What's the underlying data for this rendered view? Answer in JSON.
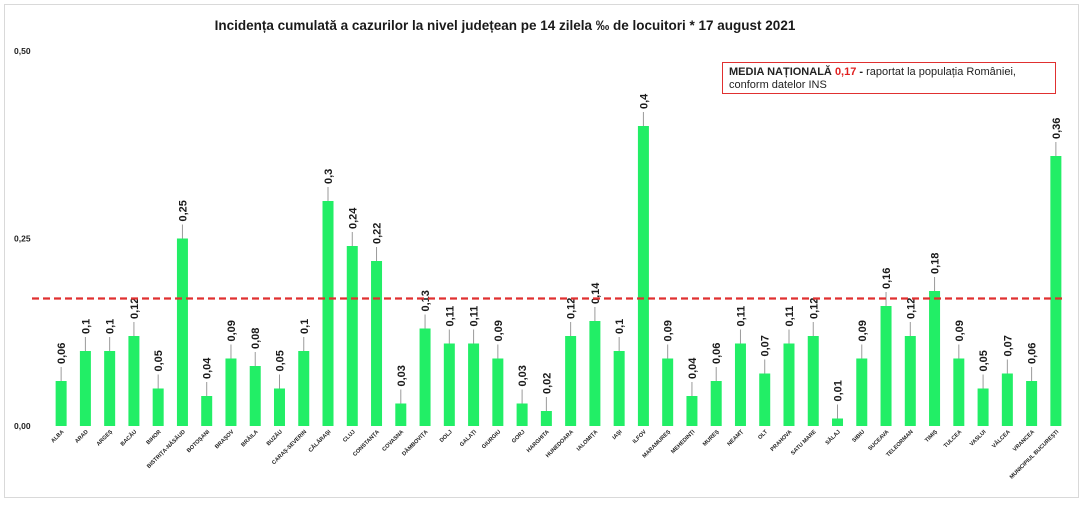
{
  "chart_data": {
    "type": "bar",
    "title": "Incidența cumulată a cazurilor la nivel județean pe 14 zilela ‰ de locuitori *  17 august 2021",
    "categories": [
      "ALBA",
      "ARAD",
      "ARGEȘ",
      "BACĂU",
      "BIHOR",
      "BISTRIȚA-NĂSĂUD",
      "BOTOȘANI",
      "BRAȘOV",
      "BRĂILA",
      "BUZĂU",
      "CARAȘ-SEVERIN",
      "CĂLĂRAȘI",
      "CLUJ",
      "CONSTANȚA",
      "COVASNA",
      "DÂMBOVIȚA",
      "DOLJ",
      "GALAȚI",
      "GIURGIU",
      "GORJ",
      "HARGHITA",
      "HUNEDOARA",
      "IALOMIȚA",
      "IAȘI",
      "ILFOV",
      "MARAMUREȘ",
      "MEHEDINȚI",
      "MUREȘ",
      "NEAMȚ",
      "OLT",
      "PRAHOVA",
      "SATU MARE",
      "SĂLAJ",
      "SIBIU",
      "SUCEAVA",
      "TELEORMAN",
      "TIMIȘ",
      "TULCEA",
      "VASLUI",
      "VÂLCEA",
      "VRANCEA",
      "MUNICIPIUL BUCUREȘTI"
    ],
    "values": [
      0.06,
      0.1,
      0.1,
      0.12,
      0.05,
      0.25,
      0.04,
      0.09,
      0.08,
      0.05,
      0.1,
      0.3,
      0.24,
      0.22,
      0.03,
      0.13,
      0.11,
      0.11,
      0.09,
      0.03,
      0.02,
      0.12,
      0.14,
      0.1,
      0.4,
      0.09,
      0.04,
      0.06,
      0.11,
      0.07,
      0.11,
      0.12,
      0.01,
      0.09,
      0.16,
      0.12,
      0.18,
      0.09,
      0.05,
      0.07,
      0.06,
      0.36
    ],
    "value_labels": [
      "0,06",
      "0,1",
      "0,1",
      "0,12",
      "0,05",
      "0,25",
      "0,04",
      "0,09",
      "0,08",
      "0,05",
      "0,1",
      "0,3",
      "0,24",
      "0,22",
      "0,03",
      "0,13",
      "0,11",
      "0,11",
      "0,09",
      "0,03",
      "0,02",
      "0,12",
      "0,14",
      "0,1",
      "0,4",
      "0,09",
      "0,04",
      "0,06",
      "0,11",
      "0,07",
      "0,11",
      "0,12",
      "0,01",
      "0,09",
      "0,16",
      "0,12",
      "0,18",
      "0,09",
      "0,05",
      "0,07",
      "0,06",
      "0,36"
    ],
    "ylim": [
      0,
      0.5
    ],
    "yticks": [
      0,
      0.25,
      0.5
    ],
    "ytick_labels": [
      "0,00",
      "0,25",
      "0,50"
    ],
    "reference_line": {
      "value": 0.17,
      "style": "dashed",
      "color": "#e03030"
    },
    "bar_color": "#22ee66",
    "grid": false,
    "xlabel": "",
    "ylabel": ""
  },
  "legend": {
    "label_strong": "MEDIA NAȚIONALĂ",
    "value": "0,17",
    "dash": " - ",
    "text_line1": "raportat la populația României,",
    "text_line2": "conform datelor INS",
    "border_color": "#e03030"
  }
}
